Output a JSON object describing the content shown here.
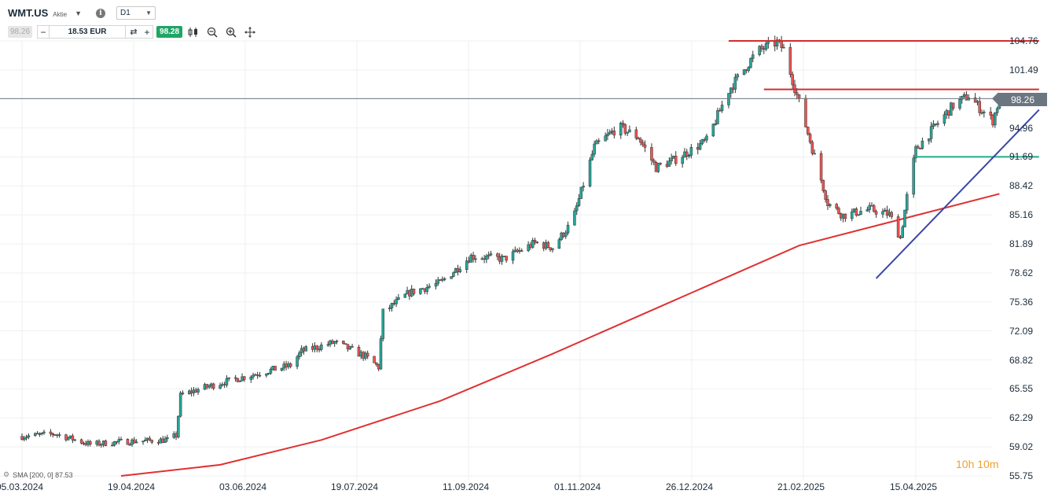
{
  "header": {
    "symbol": "WMT.US",
    "instrument_type": "Aktie",
    "timeframe": "D1",
    "sell_price": "98.26",
    "quantity": "18.53 EUR",
    "buy_price": "98.28"
  },
  "indicator": {
    "label": "SMA [200, 0] 87.53"
  },
  "timer": "10h 10m",
  "colors": {
    "up": "#26a69a",
    "down": "#ef5350",
    "sma": "#e03131",
    "resistance": "#d62c2c",
    "trend": "#3a46a8",
    "support": "#1fae8a",
    "last": "#6c7680"
  },
  "chart_data": {
    "type": "candlestick",
    "symbol": "WMT.US",
    "timeframe": "D1",
    "ylim": [
      55.75,
      106.0
    ],
    "yticks": [
      "104.76",
      "101.49",
      "98.26",
      "94.96",
      "91.69",
      "88.42",
      "85.16",
      "81.89",
      "78.62",
      "75.36",
      "72.09",
      "68.82",
      "65.55",
      "62.29",
      "59.02",
      "55.75"
    ],
    "xticks": [
      "05.03.2024",
      "19.04.2024",
      "03.06.2024",
      "19.07.2024",
      "11.09.2024",
      "01.11.2024",
      "26.12.2024",
      "21.02.2025",
      "15.04.2025"
    ],
    "last_price": "98.26",
    "close_path": [
      [
        "2024-03-05",
        60.2
      ],
      [
        "2024-03-20",
        60.5
      ],
      [
        "2024-04-05",
        59.3
      ],
      [
        "2024-04-19",
        59.6
      ],
      [
        "2024-05-10",
        59.8
      ],
      [
        "2024-05-14",
        60.3
      ],
      [
        "2024-05-16",
        64.8
      ],
      [
        "2024-05-24",
        65.5
      ],
      [
        "2024-06-03",
        66.2
      ],
      [
        "2024-06-20",
        67.3
      ],
      [
        "2024-07-05",
        68.2
      ],
      [
        "2024-07-10",
        69.8
      ],
      [
        "2024-07-25",
        70.8
      ],
      [
        "2024-08-08",
        69.2
      ],
      [
        "2024-08-14",
        68.0
      ],
      [
        "2024-08-16",
        74.2
      ],
      [
        "2024-08-28",
        76.4
      ],
      [
        "2024-09-11",
        77.5
      ],
      [
        "2024-09-25",
        80.5
      ],
      [
        "2024-10-10",
        80.2
      ],
      [
        "2024-10-24",
        82.0
      ],
      [
        "2024-11-01",
        81.5
      ],
      [
        "2024-11-10",
        84.4
      ],
      [
        "2024-11-20",
        92.8
      ],
      [
        "2024-12-01",
        95.1
      ],
      [
        "2024-12-10",
        93.9
      ],
      [
        "2024-12-18",
        90.5
      ],
      [
        "2024-12-26",
        91.3
      ],
      [
        "2025-01-10",
        93.5
      ],
      [
        "2025-01-20",
        99.2
      ],
      [
        "2025-02-02",
        103.6
      ],
      [
        "2025-02-11",
        104.6
      ],
      [
        "2025-02-14",
        103.8
      ],
      [
        "2025-02-21",
        97.8
      ],
      [
        "2025-02-26",
        93.5
      ],
      [
        "2025-03-06",
        86.5
      ],
      [
        "2025-03-13",
        85.1
      ],
      [
        "2025-03-25",
        85.8
      ],
      [
        "2025-04-03",
        85.2
      ],
      [
        "2025-04-08",
        82.6
      ],
      [
        "2025-04-11",
        87.2
      ],
      [
        "2025-04-15",
        92.5
      ],
      [
        "2025-04-25",
        95.5
      ],
      [
        "2025-05-02",
        97.5
      ],
      [
        "2025-05-09",
        98.6
      ],
      [
        "2025-05-14",
        97.2
      ],
      [
        "2025-05-20",
        95.8
      ],
      [
        "2025-05-23",
        98.26
      ]
    ],
    "sma200": {
      "label": "SMA [200, 0]",
      "last": 87.53,
      "points": [
        [
          "2024-04-19",
          55.75
        ],
        [
          "2024-06-03",
          57.0
        ],
        [
          "2024-07-19",
          59.8
        ],
        [
          "2024-09-11",
          64.2
        ],
        [
          "2024-11-01",
          69.5
        ],
        [
          "2024-12-26",
          75.5
        ],
        [
          "2025-02-21",
          81.7
        ],
        [
          "2025-04-01",
          84.2
        ],
        [
          "2025-05-23",
          87.53
        ]
      ]
    },
    "annotations": [
      {
        "kind": "horizontal",
        "value": 104.76,
        "from": "2025-01-20",
        "to": "2025-06-10"
      },
      {
        "kind": "horizontal",
        "value": 99.3,
        "from": "2025-02-05",
        "to": "2025-06-10"
      },
      {
        "kind": "horizontal",
        "value": 91.7,
        "from": "2025-04-15",
        "to": "2025-06-10"
      },
      {
        "kind": "trendline",
        "from": [
          "2025-03-28",
          78.0
        ],
        "to": [
          "2025-06-10",
          97.0
        ]
      }
    ]
  }
}
